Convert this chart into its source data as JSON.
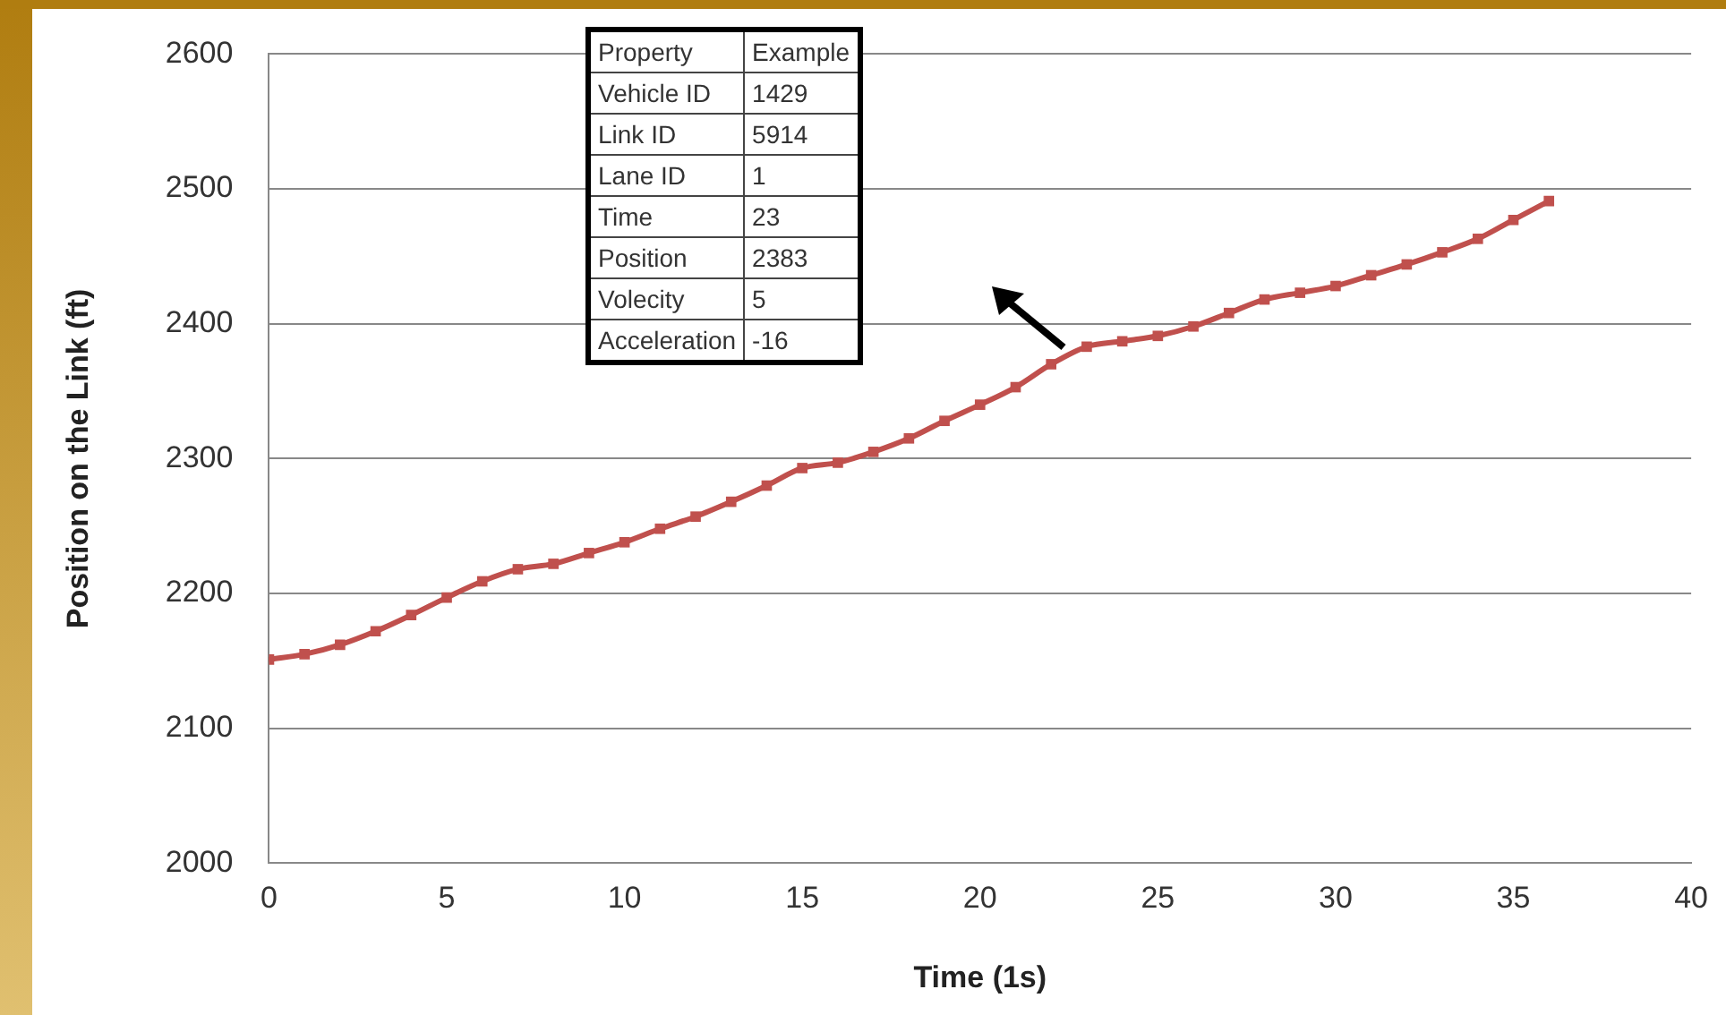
{
  "chart_data": {
    "type": "line",
    "xlabel": "Time (1s)",
    "ylabel": "Position on the Link (ft)",
    "x": [
      0,
      1,
      2,
      3,
      4,
      5,
      6,
      7,
      8,
      9,
      10,
      11,
      12,
      13,
      14,
      15,
      16,
      17,
      18,
      19,
      20,
      21,
      22,
      23,
      24,
      25,
      26,
      27,
      28,
      29,
      30,
      31,
      32,
      33,
      34,
      35,
      36
    ],
    "series": [
      {
        "color": "#c0504d",
        "values": [
          2151,
          2155,
          2162,
          2172,
          2184,
          2197,
          2209,
          2218,
          2222,
          2230,
          2238,
          2248,
          2257,
          2268,
          2280,
          2293,
          2297,
          2305,
          2315,
          2328,
          2340,
          2353,
          2370,
          2383,
          2387,
          2391,
          2398,
          2408,
          2418,
          2423,
          2428,
          2436,
          2444,
          2453,
          2463,
          2477,
          2491
        ]
      }
    ],
    "xlim": [
      0,
      40
    ],
    "xticks": [
      0,
      5,
      10,
      15,
      20,
      25,
      30,
      35,
      40
    ],
    "ylim": [
      2000,
      2600
    ],
    "yticks": [
      2000,
      2100,
      2200,
      2300,
      2400,
      2500,
      2600
    ],
    "grid": "y",
    "legend": false,
    "marker": "square",
    "line_style": "solid",
    "annotations": [
      "Property",
      "Example",
      "Vehicle ID",
      "1429",
      "Link ID",
      "5914",
      "Lane ID",
      "1",
      "Time",
      "23",
      "Position",
      "2383",
      "Volecity",
      "5",
      "Acceleration",
      "-16"
    ]
  }
}
